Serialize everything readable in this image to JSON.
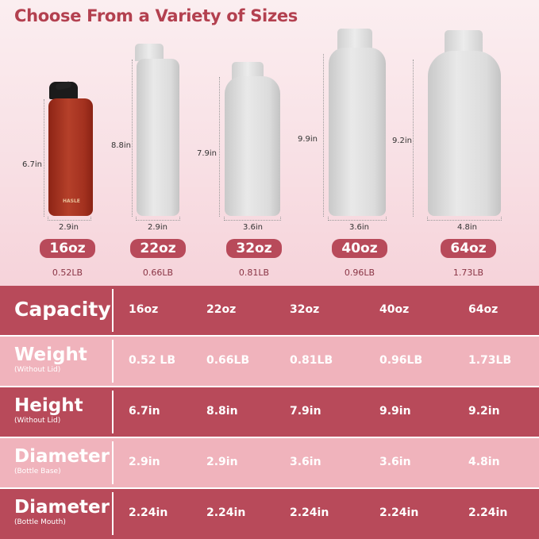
{
  "title": "Choose From a Variety of Sizes",
  "bottles": [
    {
      "color": "#a83222",
      "height": "6.7in",
      "diameter": "2.9in",
      "size": "16oz",
      "weight": "0.52LB",
      "logo": "HASLE"
    },
    {
      "color": "#dedede",
      "height": "8.8in",
      "diameter": "2.9in",
      "size": "22oz",
      "weight": "0.66LB"
    },
    {
      "color": "#dedede",
      "height": "7.9in",
      "diameter": "3.6in",
      "size": "32oz",
      "weight": "0.81LB"
    },
    {
      "color": "#dedede",
      "height": "9.9in",
      "diameter": "3.6in",
      "size": "40oz",
      "weight": "0.96LB"
    },
    {
      "color": "#dedede",
      "height": "9.2in",
      "diameter": "4.8in",
      "size": "64oz",
      "weight": "1.73LB"
    }
  ],
  "table": {
    "colors": {
      "dark": "#b84a5a",
      "light": "#f0b3bc"
    },
    "rows": [
      {
        "label": "Capacity",
        "sub": "",
        "values": [
          "16oz",
          "22oz",
          "32oz",
          "40oz",
          "64oz"
        ]
      },
      {
        "label": "Weight",
        "sub": "(Without Lid)",
        "values": [
          "0.52 LB",
          "0.66LB",
          "0.81LB",
          "0.96LB",
          "1.73LB"
        ]
      },
      {
        "label": "Height",
        "sub": "(Without Lid)",
        "values": [
          "6.7in",
          "8.8in",
          "7.9in",
          "9.9in",
          "9.2in"
        ]
      },
      {
        "label": "Diameter",
        "sub": "(Bottle Base)",
        "values": [
          "2.9in",
          "2.9in",
          "3.6in",
          "3.6in",
          "4.8in"
        ]
      },
      {
        "label": "Diameter",
        "sub": "(Bottle Mouth)",
        "values": [
          "2.24in",
          "2.24in",
          "2.24in",
          "2.24in",
          "2.24in"
        ]
      }
    ]
  }
}
